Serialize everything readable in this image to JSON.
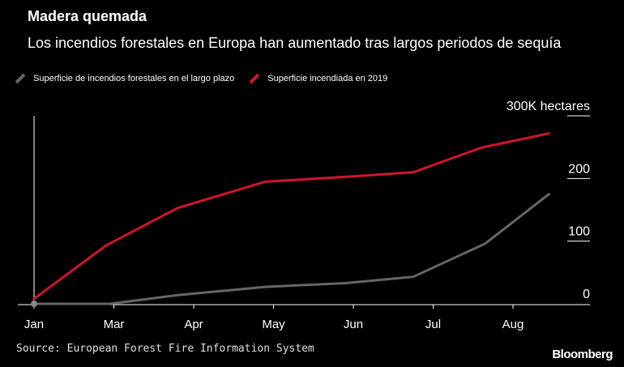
{
  "header": {
    "title": "Madera quemada",
    "subtitle": "Los incendios forestales en Europa han aumentado tras largos periodos de sequía"
  },
  "footer": {
    "source": "Source: European Forest Fire Information System",
    "brand": "Bloomberg"
  },
  "colors": {
    "background": "#000000",
    "long_term": "#666666",
    "year_2019": "#d0152e",
    "axis": "#ffffff",
    "gridline": "#ffffff"
  },
  "chart_data": {
    "type": "line",
    "title": "Madera quemada",
    "subtitle": "Los incendios forestales en Europa han aumentado tras largos periodos de sequía",
    "ylim": [
      0,
      300
    ],
    "x_range": [
      0,
      7.4
    ],
    "ytick_labels": [
      {
        "value": 300,
        "label": "300K hectares"
      },
      {
        "value": 200,
        "label": "200"
      },
      {
        "value": 100,
        "label": "100"
      },
      {
        "value": 0,
        "label": "0"
      }
    ],
    "xtick_labels": [
      {
        "value": 0,
        "label": "Jan"
      },
      {
        "value": 1,
        "label": "Mar"
      },
      {
        "value": 2,
        "label": "Apr"
      },
      {
        "value": 3,
        "label": "May"
      },
      {
        "value": 4,
        "label": "Jun"
      },
      {
        "value": 5,
        "label": "Jul"
      },
      {
        "value": 6,
        "label": "Aug"
      }
    ],
    "legend_position": "top-left",
    "series": [
      {
        "name": "Superficie de incendios forestales en el largo plazo",
        "color": "#666666",
        "points": [
          [
            0,
            0
          ],
          [
            0.95,
            0
          ],
          [
            1.8,
            14
          ],
          [
            2.9,
            27
          ],
          [
            3.9,
            33
          ],
          [
            4.75,
            43
          ],
          [
            5.65,
            96
          ],
          [
            6.45,
            175
          ]
        ]
      },
      {
        "name": "Superficie incendiada en 2019",
        "color": "#d0152e",
        "points": [
          [
            0,
            8
          ],
          [
            0.9,
            93
          ],
          [
            1.8,
            153
          ],
          [
            2.9,
            195
          ],
          [
            3.95,
            203
          ],
          [
            4.75,
            210
          ],
          [
            5.6,
            249
          ],
          [
            6.45,
            272
          ]
        ]
      }
    ]
  }
}
